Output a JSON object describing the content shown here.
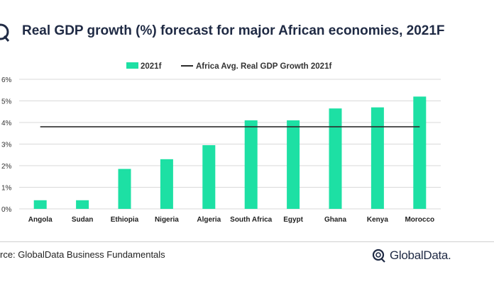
{
  "header": {
    "title": "Real GDP growth (%) forecast for major African economies, 2021F"
  },
  "footer": {
    "source": "rce: GlobalData Business Fundamentals",
    "brand": "GlobalData."
  },
  "colors": {
    "bar": "#1de0a4",
    "avg_line": "#2b2b2b",
    "title": "#1f2a44",
    "gridline": "#d9d9d9"
  },
  "chart_data": {
    "type": "bar",
    "categories": [
      "Angola",
      "Sudan",
      "Ethiopia",
      "Nigeria",
      "Algeria",
      "South Africa",
      "Egypt",
      "Ghana",
      "Kenya",
      "Morocco"
    ],
    "series": [
      {
        "name": "2021f",
        "values": [
          0.4,
          0.4,
          1.85,
          2.3,
          2.95,
          4.1,
          4.1,
          4.65,
          4.7,
          5.2
        ]
      }
    ],
    "reference_line": {
      "name": "Africa Avg. Real GDP Growth 2021f",
      "value": 3.8
    },
    "yticks": [
      "0%",
      "1%",
      "2%",
      "3%",
      "4%",
      "5%",
      "6%"
    ],
    "ylim": [
      0,
      6
    ],
    "grid": true,
    "legend_position": "top-center"
  }
}
